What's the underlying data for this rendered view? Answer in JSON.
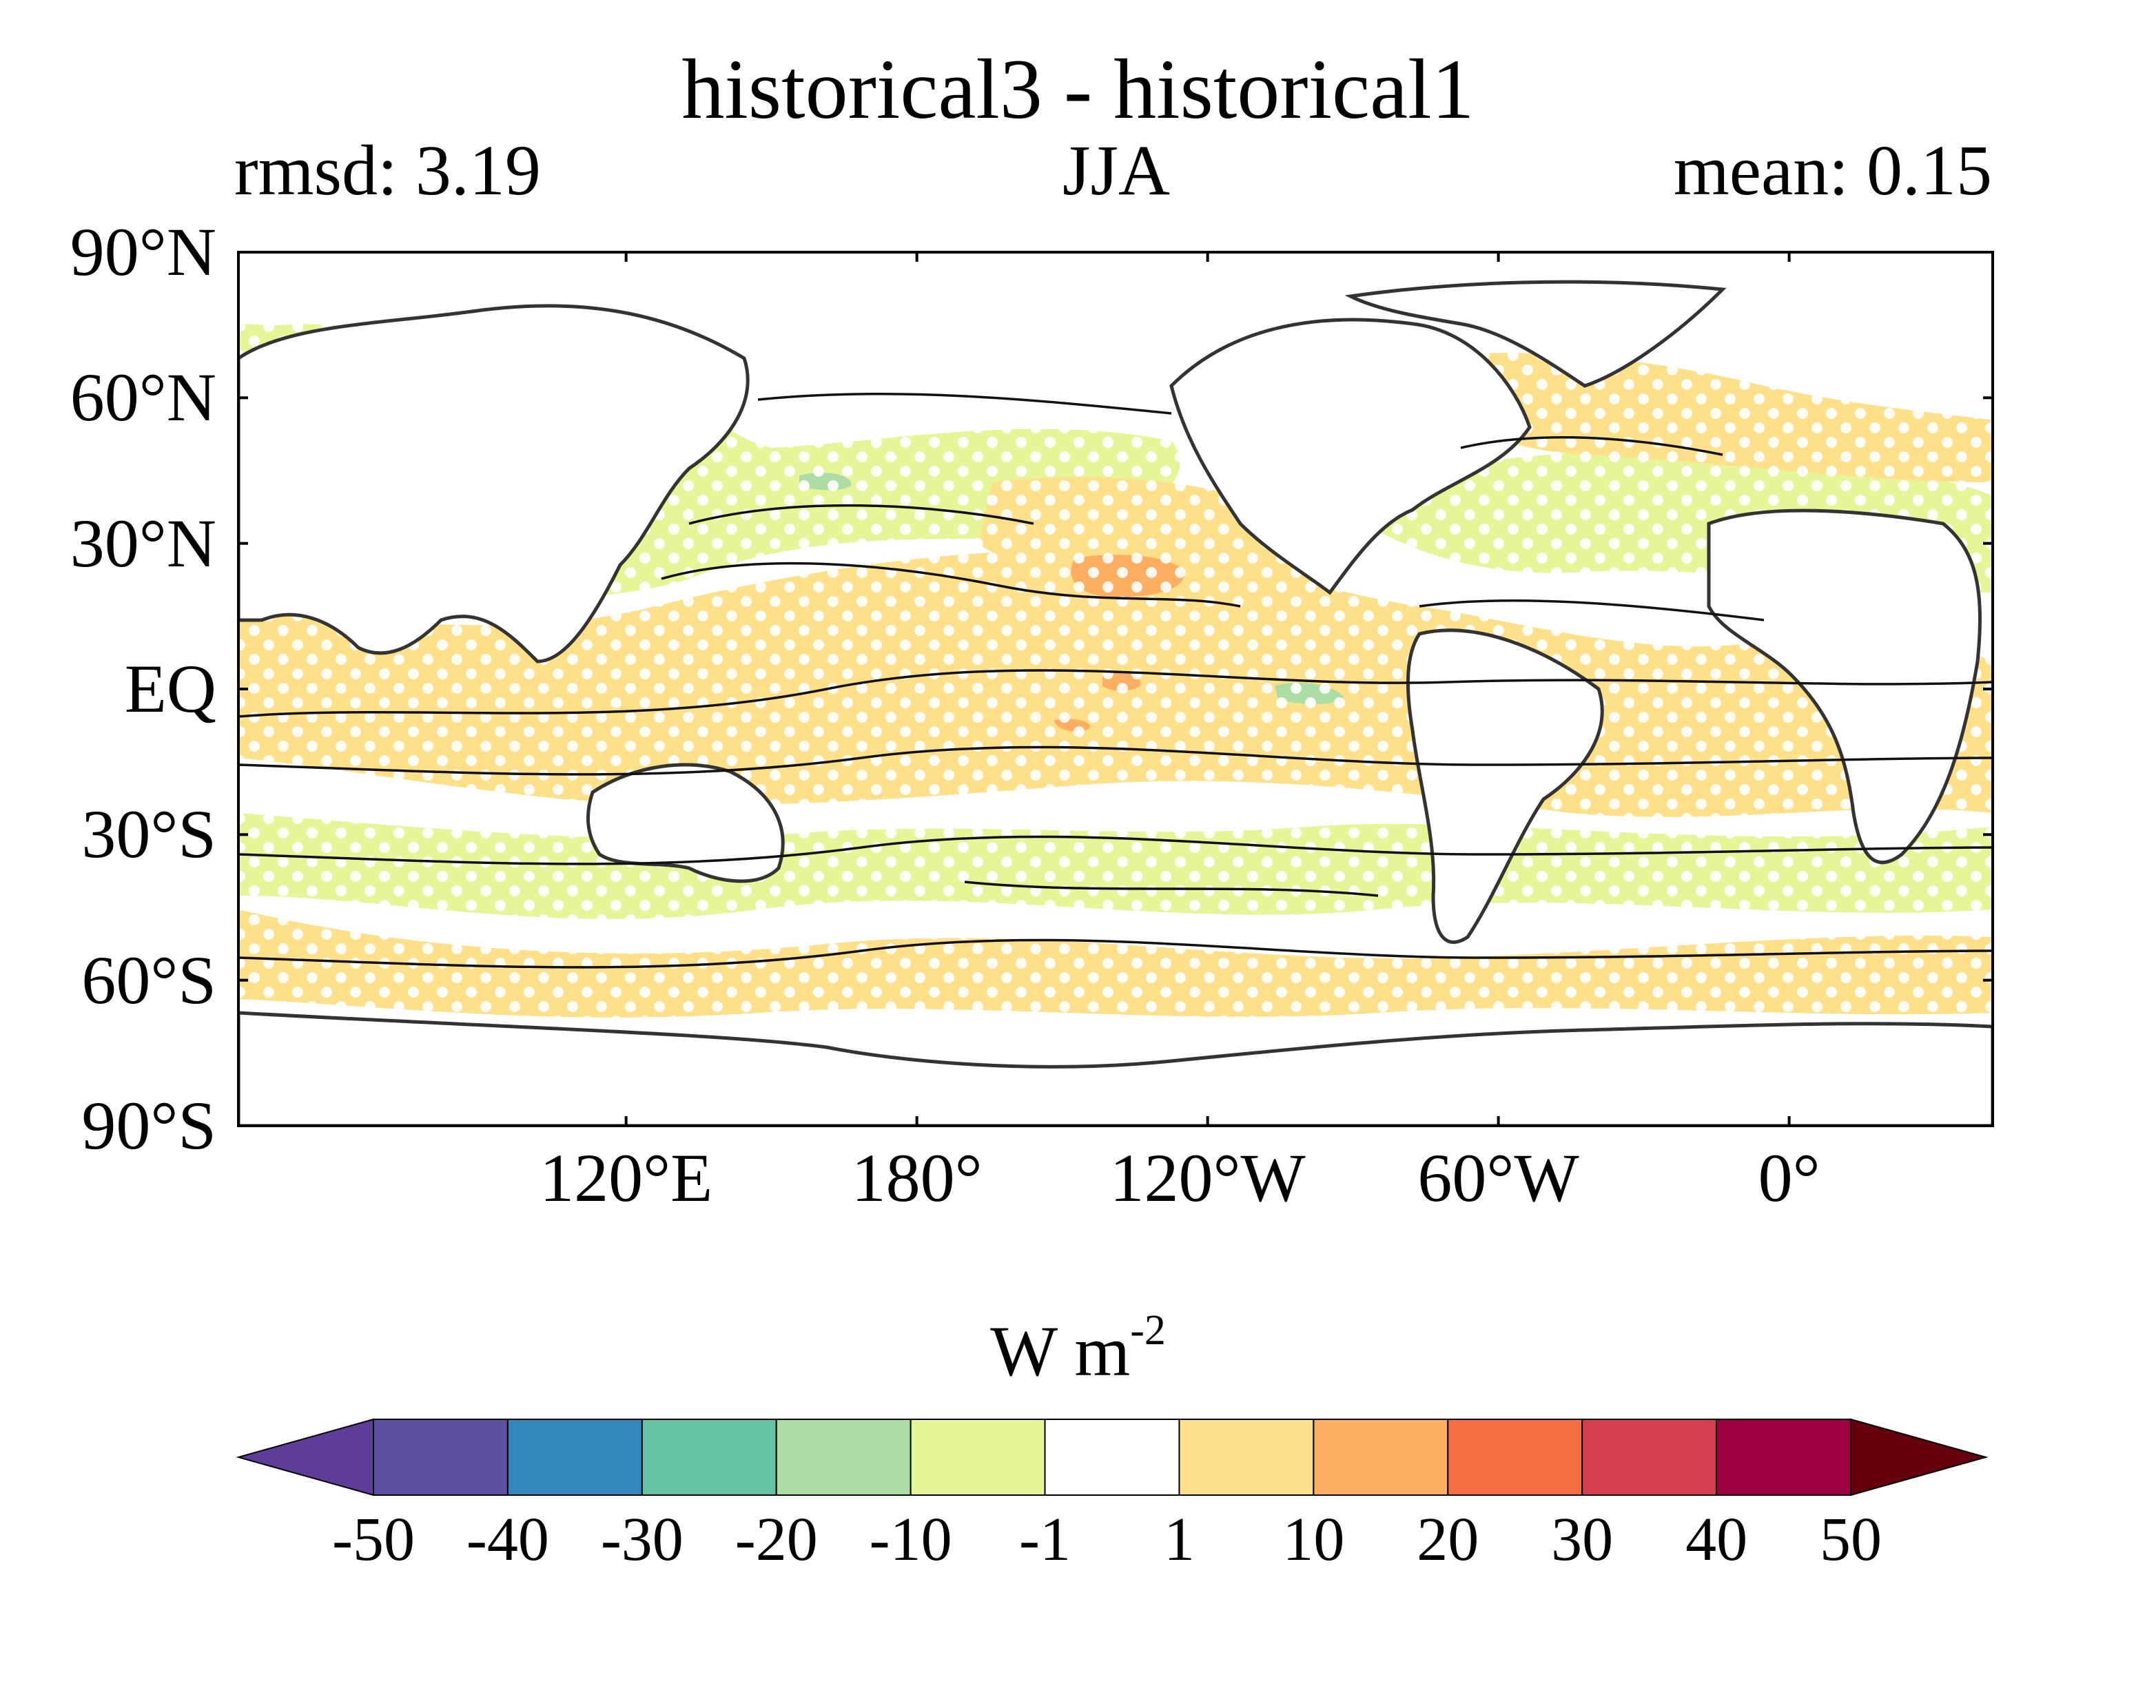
{
  "title": "historical3 - historical1",
  "left_subtitle": "rmsd: 3.19",
  "center_subtitle": "JJA",
  "right_subtitle": "mean: 0.15",
  "lat_labels": [
    "90°N",
    "60°N",
    "30°N",
    "EQ",
    "30°S",
    "60°S",
    "90°S"
  ],
  "lat_values": [
    90,
    60,
    30,
    0,
    -30,
    -60,
    -90
  ],
  "lon_labels": [
    "120°E",
    "180°",
    "120°W",
    "60°W",
    "0°"
  ],
  "lon_values": [
    120,
    180,
    240,
    300,
    360
  ],
  "map_extent": {
    "lon_min": 40,
    "lon_max": 402,
    "lat_min": -90,
    "lat_max": 90
  },
  "colorbar": {
    "label": "W m",
    "label_exponent": "-2",
    "ticks": [
      "-50",
      "-40",
      "-30",
      "-20",
      "-10",
      "-1",
      "1",
      "10",
      "20",
      "30",
      "40",
      "50"
    ],
    "colors": [
      "#5e3c99",
      "#5e4fa2",
      "#3288bd",
      "#66c2a5",
      "#abdda4",
      "#e6f598",
      "#ffffff",
      "#fee08b",
      "#fdae61",
      "#f46d43",
      "#d53e4f",
      "#9e0142",
      "#67000d"
    ]
  }
}
